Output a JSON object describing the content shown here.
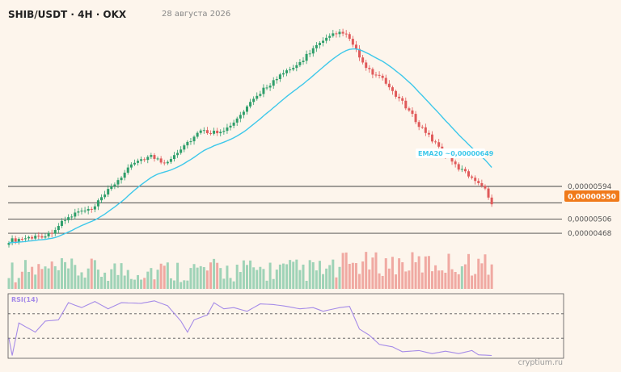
{
  "header": {
    "title": "SHIB/USDT · 4H · OKX",
    "date": "28 августа 2026"
  },
  "watermark": "cryptium.ru",
  "colors": {
    "background": "#fdf5ec",
    "up": "#2e9e6a",
    "down": "#e05a5a",
    "ema": "#3ec8ea",
    "current": "#f07a1a",
    "rsi": "#a58be8"
  },
  "chart_data": {
    "type": "candlestick",
    "timeframe": "4H",
    "ylim": [
      4.4e-06,
      1.03e-05
    ],
    "price_levels": [
      "0,00000594",
      "0,00000506",
      "0,00000468"
    ],
    "current_price": "0,00000550",
    "ema": {
      "label": "EMA20 ~0,00000649"
    },
    "rsi": {
      "label": "RSI(14)",
      "ylim": [
        0,
        100
      ],
      "levels": [
        70,
        30
      ]
    },
    "close_path": [
      {
        "i": 0,
        "p": 4.48e-06
      },
      {
        "i": 5,
        "p": 4.55e-06
      },
      {
        "i": 12,
        "p": 4.65e-06
      },
      {
        "i": 17,
        "p": 5.04e-06
      },
      {
        "i": 21,
        "p": 5.26e-06
      },
      {
        "i": 25,
        "p": 5.3e-06
      },
      {
        "i": 28,
        "p": 5.61e-06
      },
      {
        "i": 33,
        "p": 6.12e-06
      },
      {
        "i": 39,
        "p": 6.66e-06
      },
      {
        "i": 43,
        "p": 6.75e-06
      },
      {
        "i": 47,
        "p": 6.56e-06
      },
      {
        "i": 53,
        "p": 7.05e-06
      },
      {
        "i": 58,
        "p": 7.42e-06
      },
      {
        "i": 62,
        "p": 7.4e-06
      },
      {
        "i": 67,
        "p": 7.54e-06
      },
      {
        "i": 72,
        "p": 8.05e-06
      },
      {
        "i": 77,
        "p": 8.57e-06
      },
      {
        "i": 82,
        "p": 8.9e-06
      },
      {
        "i": 87,
        "p": 9.18e-06
      },
      {
        "i": 92,
        "p": 9.65e-06
      },
      {
        "i": 98,
        "p": 1e-05
      },
      {
        "i": 101,
        "p": 1.01e-05
      },
      {
        "i": 104,
        "p": 9.75e-06
      },
      {
        "i": 108,
        "p": 9.1e-06
      },
      {
        "i": 113,
        "p": 8.8e-06
      },
      {
        "i": 118,
        "p": 8.3e-06
      },
      {
        "i": 124,
        "p": 7.6e-06
      },
      {
        "i": 130,
        "p": 7e-06
      },
      {
        "i": 135,
        "p": 6.5e-06
      },
      {
        "i": 140,
        "p": 6.18e-06
      },
      {
        "i": 143,
        "p": 6e-06
      },
      {
        "i": 146,
        "p": 5.5e-06
      }
    ],
    "rsi_path": [
      {
        "i": 0,
        "v": 30
      },
      {
        "i": 1,
        "v": 2
      },
      {
        "i": 3,
        "v": 55
      },
      {
        "i": 8,
        "v": 40
      },
      {
        "i": 11,
        "v": 58
      },
      {
        "i": 15,
        "v": 60
      },
      {
        "i": 18,
        "v": 88
      },
      {
        "i": 22,
        "v": 80
      },
      {
        "i": 26,
        "v": 90
      },
      {
        "i": 30,
        "v": 78
      },
      {
        "i": 34,
        "v": 88
      },
      {
        "i": 40,
        "v": 87
      },
      {
        "i": 44,
        "v": 91
      },
      {
        "i": 48,
        "v": 83
      },
      {
        "i": 52,
        "v": 58
      },
      {
        "i": 54,
        "v": 40
      },
      {
        "i": 56,
        "v": 60
      },
      {
        "i": 60,
        "v": 68
      },
      {
        "i": 62,
        "v": 88
      },
      {
        "i": 65,
        "v": 78
      },
      {
        "i": 68,
        "v": 80
      },
      {
        "i": 72,
        "v": 74
      },
      {
        "i": 76,
        "v": 86
      },
      {
        "i": 80,
        "v": 85
      },
      {
        "i": 84,
        "v": 82
      },
      {
        "i": 88,
        "v": 78
      },
      {
        "i": 92,
        "v": 80
      },
      {
        "i": 95,
        "v": 74
      },
      {
        "i": 100,
        "v": 80
      },
      {
        "i": 103,
        "v": 82
      },
      {
        "i": 106,
        "v": 45
      },
      {
        "i": 109,
        "v": 35
      },
      {
        "i": 112,
        "v": 20
      },
      {
        "i": 116,
        "v": 16
      },
      {
        "i": 119,
        "v": 8
      },
      {
        "i": 124,
        "v": 10
      },
      {
        "i": 128,
        "v": 5
      },
      {
        "i": 132,
        "v": 9
      },
      {
        "i": 136,
        "v": 5
      },
      {
        "i": 140,
        "v": 10
      },
      {
        "i": 142,
        "v": 3
      },
      {
        "i": 146,
        "v": 2
      }
    ]
  }
}
